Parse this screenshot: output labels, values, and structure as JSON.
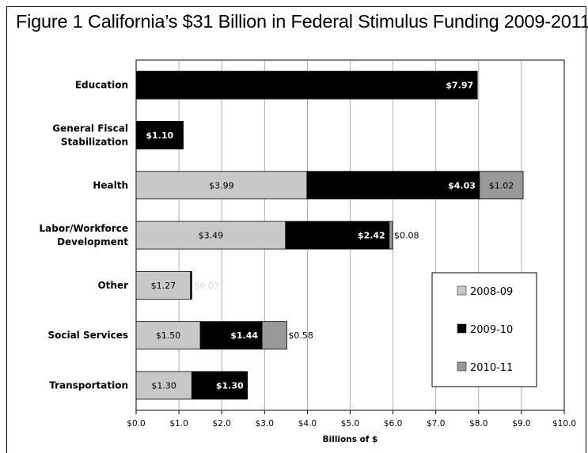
{
  "title": "Figure 1 California’s $31 Billion in Federal Stimulus Funding 2009-2011",
  "chart_data": {
    "type": "bar",
    "orientation": "horizontal",
    "stacked": true,
    "title": "Figure 1 California’s $31 Billion in Federal Stimulus Funding 2009-2011",
    "xlabel": "Billions of $",
    "ylabel": "",
    "xlim": [
      0,
      10
    ],
    "x_ticks": [
      "$0.0",
      "$1.0",
      "$2.0",
      "$3.0",
      "$4.0",
      "$5.0",
      "$6.0",
      "$7.0",
      "$8.0",
      "$9.0",
      "$10.0"
    ],
    "grid": true,
    "legend_position": "right",
    "categories": [
      [
        "Education"
      ],
      [
        "General Fiscal",
        "Stabilization"
      ],
      [
        "Health"
      ],
      [
        "Labor/Workforce",
        "Development"
      ],
      [
        "Other"
      ],
      [
        "Social Services"
      ],
      [
        "Transportation"
      ]
    ],
    "series": [
      {
        "name": "2008-09",
        "color": "#c8c8c8",
        "label_color": "#000000",
        "values": [
          0,
          0,
          3.99,
          3.49,
          1.27,
          1.5,
          1.3
        ],
        "labels": [
          "",
          "",
          "$3.99",
          "$3.49",
          "$1.27",
          "$1.50",
          "$1.30"
        ]
      },
      {
        "name": "2009-10",
        "color": "#000000",
        "label_color": "#ffffff",
        "values": [
          7.97,
          1.1,
          4.03,
          2.42,
          0.03,
          1.44,
          1.3
        ],
        "labels": [
          "$7.97",
          "$1.10",
          "$4.03",
          "$2.42",
          "$0.03",
          "$1.44",
          "$1.30"
        ]
      },
      {
        "name": "2010-11",
        "color": "#999999",
        "label_color": "#000000",
        "values": [
          0,
          0,
          1.02,
          0.08,
          0,
          0.58,
          0
        ],
        "labels": [
          "",
          "",
          "$1.02",
          "$0.08",
          "",
          "$0.58",
          ""
        ]
      }
    ]
  }
}
